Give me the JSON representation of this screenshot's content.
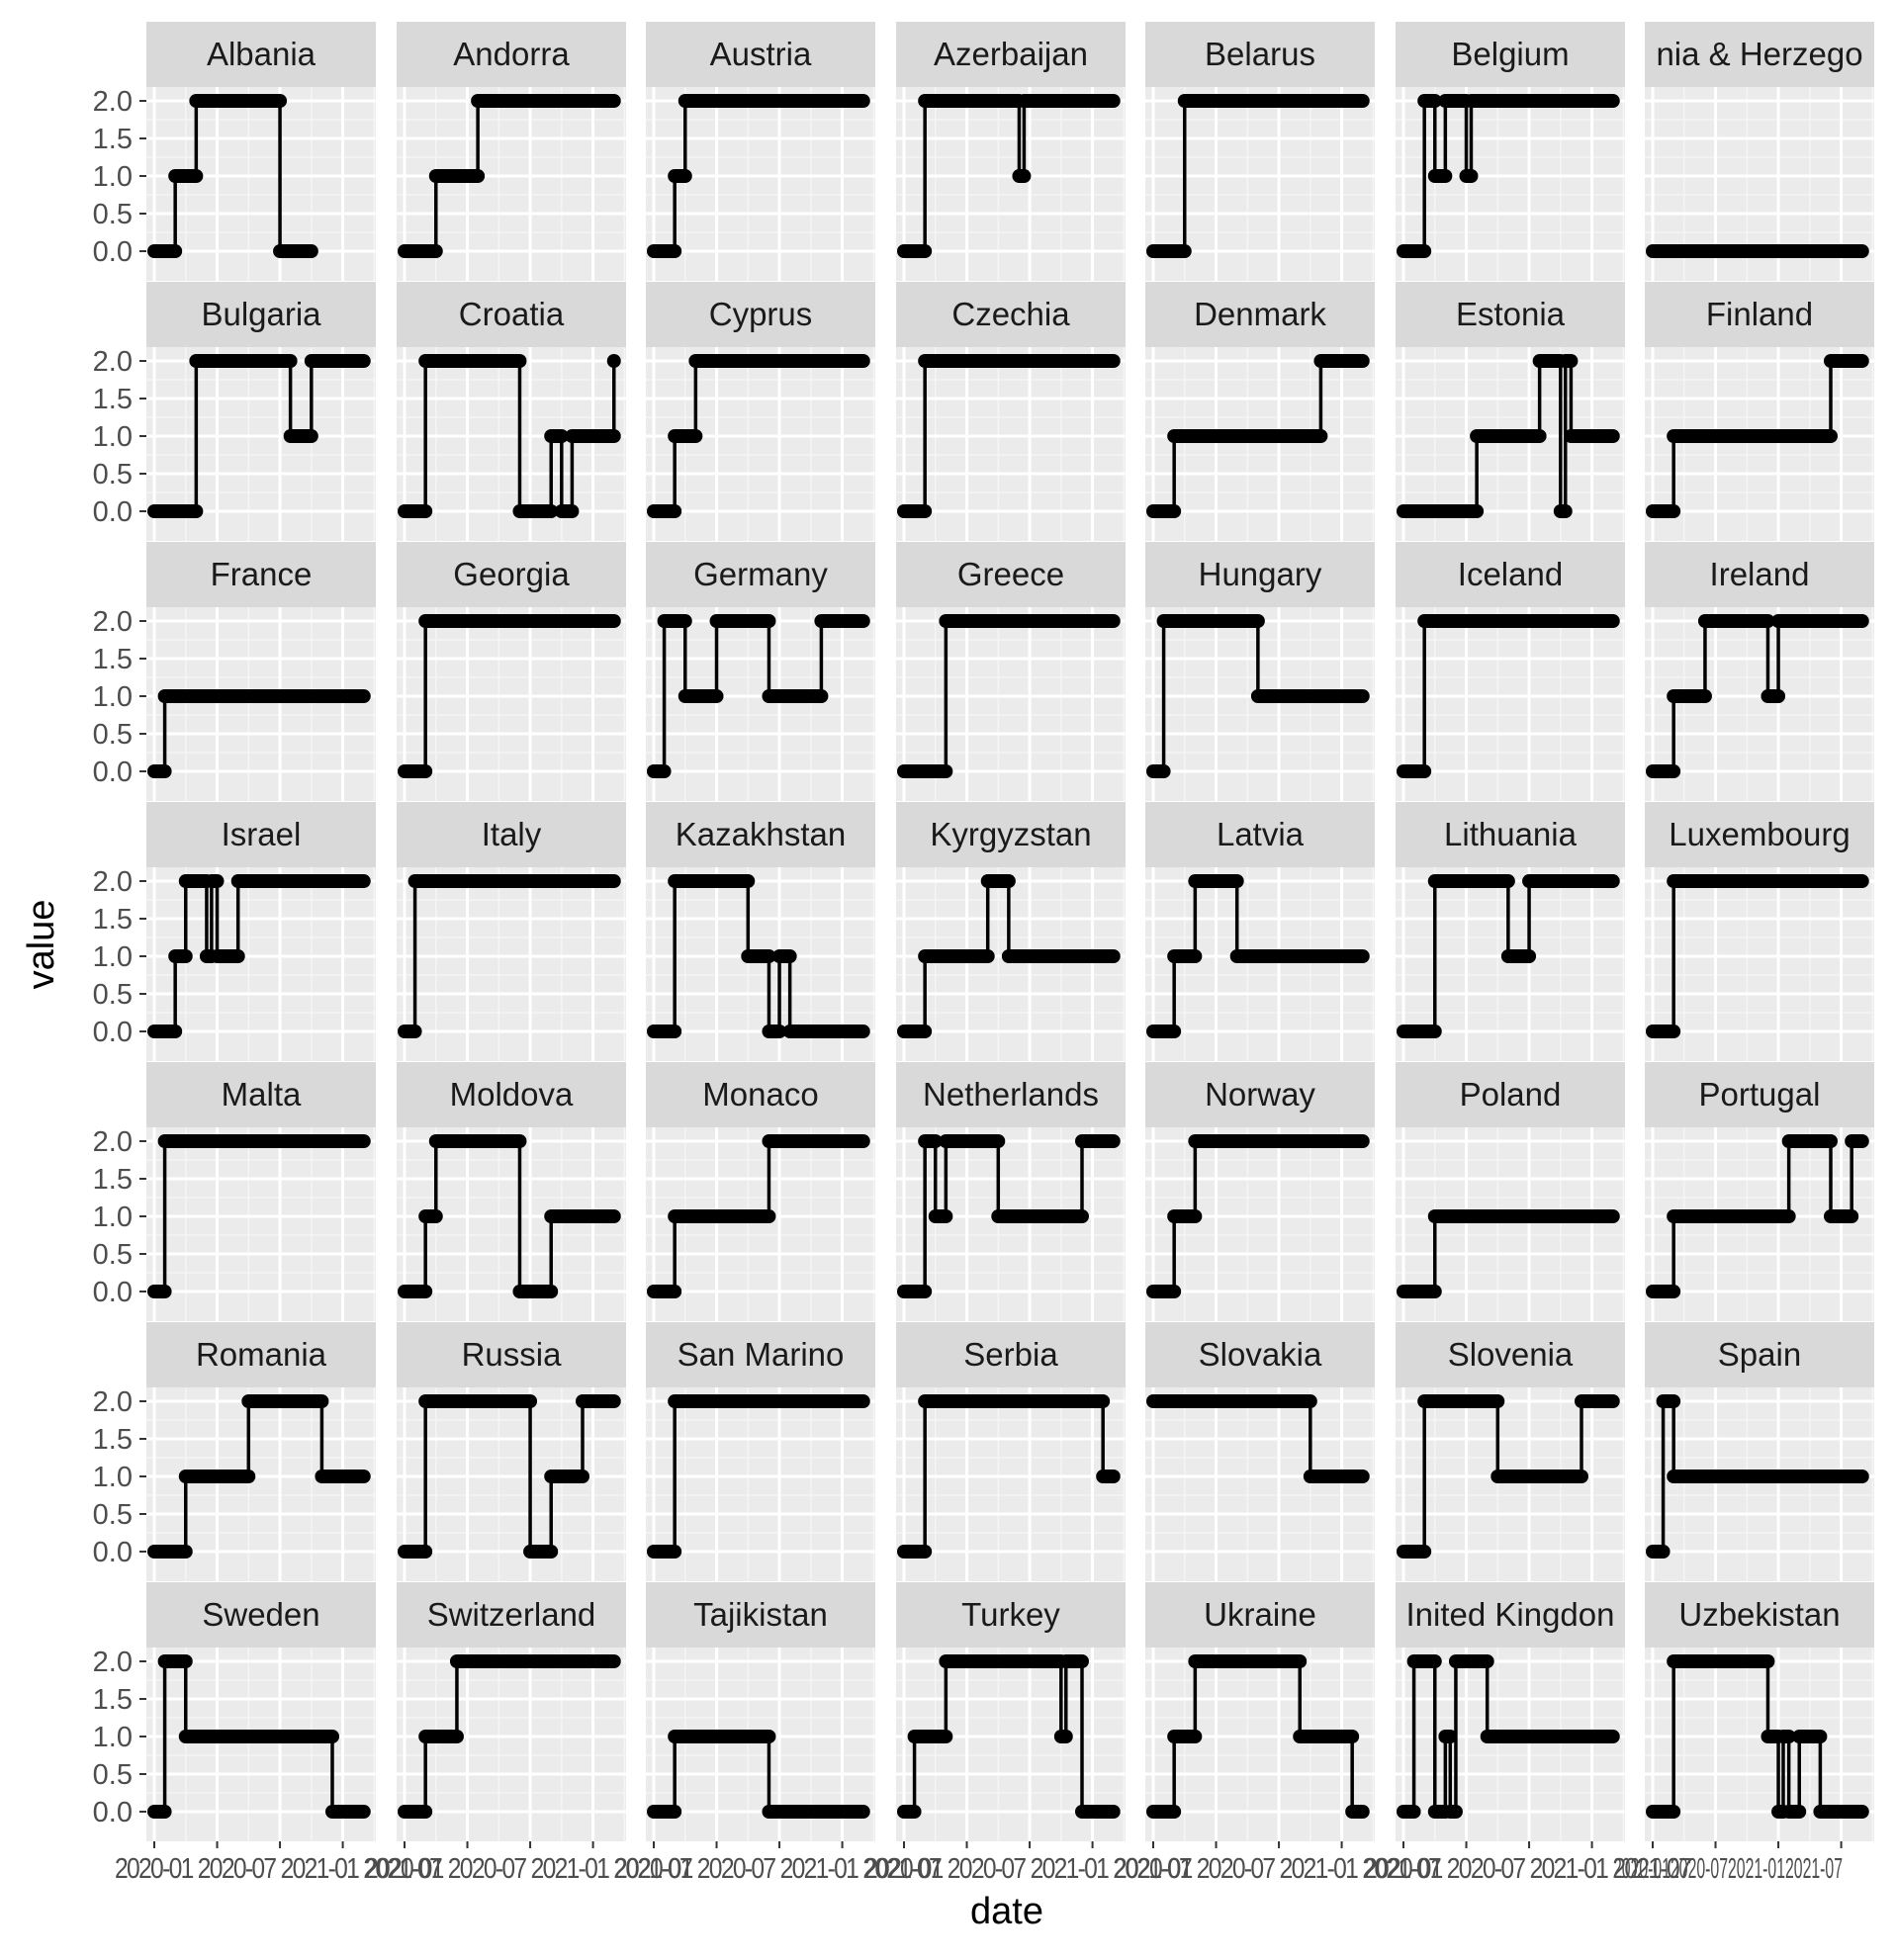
{
  "chart_data": {
    "type": "line",
    "subtype": "step facets",
    "xlabel": "date",
    "ylabel": "value",
    "ylim": [
      0,
      2
    ],
    "y_ticks": [
      "0.0",
      "0.5",
      "1.0",
      "1.5",
      "2.0"
    ],
    "x_range": [
      "2020-01",
      "2021-09"
    ],
    "x_tick_text": "2020-01 2020-07 2021-01 2021-07",
    "x_tick_text_last": "2020-012020-072021-012021-07",
    "x_tick_dates": [
      "2020-01",
      "2020-07",
      "2021-01",
      "2021-07"
    ],
    "ncol": 7,
    "grid": true,
    "facets": [
      {
        "name": "Albania",
        "steps": [
          [
            "2020-01",
            0
          ],
          [
            "2020-03",
            1
          ],
          [
            "2020-05",
            2
          ],
          [
            "2021-01",
            0
          ]
        ],
        "end": "2021-04"
      },
      {
        "name": "Andorra",
        "steps": [
          [
            "2020-01",
            0
          ],
          [
            "2020-04",
            1
          ],
          [
            "2020-08",
            2
          ]
        ],
        "end": "2021-09"
      },
      {
        "name": "Austria",
        "steps": [
          [
            "2020-01",
            0
          ],
          [
            "2020-03",
            1
          ],
          [
            "2020-04",
            2
          ]
        ],
        "end": "2021-09"
      },
      {
        "name": "Azerbaijan",
        "steps": [
          [
            "2020-01",
            0
          ],
          [
            "2020-03",
            2
          ],
          [
            "2020-12",
            1
          ],
          [
            "2020-12-15",
            2
          ]
        ],
        "end": "2021-09"
      },
      {
        "name": "Belarus",
        "steps": [
          [
            "2020-01",
            0
          ],
          [
            "2020-04",
            2
          ]
        ],
        "end": "2021-09"
      },
      {
        "name": "Belgium",
        "steps": [
          [
            "2020-01",
            0
          ],
          [
            "2020-03",
            2
          ],
          [
            "2020-04",
            1
          ],
          [
            "2020-05",
            2
          ],
          [
            "2020-07",
            1
          ],
          [
            "2020-07-15",
            2
          ]
        ],
        "end": "2021-09"
      },
      {
        "name": "Bosnia & Herzegovina",
        "label": "nia & Herzego",
        "steps": [
          [
            "2020-01",
            0
          ]
        ],
        "end": "2021-09"
      },
      {
        "name": "Bulgaria",
        "steps": [
          [
            "2020-01",
            0
          ],
          [
            "2020-05",
            2
          ],
          [
            "2021-02",
            1
          ],
          [
            "2021-04",
            2
          ]
        ],
        "end": "2021-09"
      },
      {
        "name": "Croatia",
        "steps": [
          [
            "2020-01",
            0
          ],
          [
            "2020-03",
            2
          ],
          [
            "2020-12",
            0
          ],
          [
            "2021-03",
            1
          ],
          [
            "2021-04",
            0
          ],
          [
            "2021-05",
            1
          ],
          [
            "2021-09",
            2
          ]
        ],
        "end": "2021-09"
      },
      {
        "name": "Cyprus",
        "steps": [
          [
            "2020-01",
            0
          ],
          [
            "2020-03",
            1
          ],
          [
            "2020-05",
            2
          ]
        ],
        "end": "2021-09"
      },
      {
        "name": "Czechia",
        "steps": [
          [
            "2020-01",
            0
          ],
          [
            "2020-03",
            2
          ]
        ],
        "end": "2021-09"
      },
      {
        "name": "Denmark",
        "steps": [
          [
            "2020-01",
            0
          ],
          [
            "2020-03",
            1
          ],
          [
            "2021-05",
            2
          ]
        ],
        "end": "2021-09"
      },
      {
        "name": "Estonia",
        "steps": [
          [
            "2020-01",
            0
          ],
          [
            "2020-08",
            1
          ],
          [
            "2021-02",
            2
          ],
          [
            "2021-04",
            0
          ],
          [
            "2021-04-15",
            2
          ],
          [
            "2021-05",
            1
          ]
        ],
        "end": "2021-09"
      },
      {
        "name": "Finland",
        "steps": [
          [
            "2020-01",
            0
          ],
          [
            "2020-03",
            1
          ],
          [
            "2021-06",
            2
          ]
        ],
        "end": "2021-09"
      },
      {
        "name": "France",
        "steps": [
          [
            "2020-01",
            0
          ],
          [
            "2020-02",
            1
          ]
        ],
        "end": "2021-09"
      },
      {
        "name": "Georgia",
        "steps": [
          [
            "2020-01",
            0
          ],
          [
            "2020-03",
            2
          ]
        ],
        "end": "2021-09"
      },
      {
        "name": "Germany",
        "steps": [
          [
            "2020-01",
            0
          ],
          [
            "2020-02",
            2
          ],
          [
            "2020-04",
            1
          ],
          [
            "2020-07",
            2
          ],
          [
            "2020-12",
            1
          ],
          [
            "2021-05",
            2
          ]
        ],
        "end": "2021-09"
      },
      {
        "name": "Greece",
        "steps": [
          [
            "2020-01",
            0
          ],
          [
            "2020-05",
            2
          ]
        ],
        "end": "2021-09"
      },
      {
        "name": "Hungary",
        "steps": [
          [
            "2020-01",
            0
          ],
          [
            "2020-02",
            2
          ],
          [
            "2020-11",
            1
          ]
        ],
        "end": "2021-09"
      },
      {
        "name": "Iceland",
        "steps": [
          [
            "2020-01",
            0
          ],
          [
            "2020-03",
            2
          ]
        ],
        "end": "2021-09"
      },
      {
        "name": "Ireland",
        "steps": [
          [
            "2020-01",
            0
          ],
          [
            "2020-03",
            1
          ],
          [
            "2020-06",
            2
          ],
          [
            "2020-12",
            1
          ],
          [
            "2021-01",
            2
          ]
        ],
        "end": "2021-09"
      },
      {
        "name": "Israel",
        "steps": [
          [
            "2020-01",
            0
          ],
          [
            "2020-03",
            1
          ],
          [
            "2020-04",
            2
          ],
          [
            "2020-06",
            1
          ],
          [
            "2020-06-15",
            2
          ],
          [
            "2020-07",
            1
          ],
          [
            "2020-09",
            2
          ]
        ],
        "end": "2021-09"
      },
      {
        "name": "Italy",
        "steps": [
          [
            "2020-01",
            0
          ],
          [
            "2020-02",
            2
          ]
        ],
        "end": "2021-09"
      },
      {
        "name": "Kazakhstan",
        "steps": [
          [
            "2020-01",
            0
          ],
          [
            "2020-03",
            2
          ],
          [
            "2020-10",
            1
          ],
          [
            "2020-12",
            0
          ],
          [
            "2021-01",
            1
          ],
          [
            "2021-02",
            0
          ]
        ],
        "end": "2021-09"
      },
      {
        "name": "Kyrgyzstan",
        "steps": [
          [
            "2020-01",
            0
          ],
          [
            "2020-03",
            1
          ],
          [
            "2020-09",
            2
          ],
          [
            "2020-11",
            1
          ]
        ],
        "end": "2021-09"
      },
      {
        "name": "Latvia",
        "steps": [
          [
            "2020-01",
            0
          ],
          [
            "2020-03",
            1
          ],
          [
            "2020-05",
            2
          ],
          [
            "2020-09",
            1
          ]
        ],
        "end": "2021-09"
      },
      {
        "name": "Lithuania",
        "steps": [
          [
            "2020-01",
            0
          ],
          [
            "2020-04",
            2
          ],
          [
            "2020-11",
            1
          ],
          [
            "2021-01",
            2
          ]
        ],
        "end": "2021-09"
      },
      {
        "name": "Luxembourg",
        "steps": [
          [
            "2020-01",
            0
          ],
          [
            "2020-03",
            2
          ]
        ],
        "end": "2021-09"
      },
      {
        "name": "Malta",
        "steps": [
          [
            "2020-01",
            0
          ],
          [
            "2020-02",
            2
          ]
        ],
        "end": "2021-09"
      },
      {
        "name": "Moldova",
        "steps": [
          [
            "2020-01",
            0
          ],
          [
            "2020-03",
            1
          ],
          [
            "2020-04",
            2
          ],
          [
            "2020-12",
            0
          ],
          [
            "2021-03",
            1
          ]
        ],
        "end": "2021-09"
      },
      {
        "name": "Monaco",
        "steps": [
          [
            "2020-01",
            0
          ],
          [
            "2020-03",
            1
          ],
          [
            "2020-09",
            1
          ],
          [
            "2020-12",
            2
          ]
        ],
        "end": "2021-09"
      },
      {
        "name": "Netherlands",
        "steps": [
          [
            "2020-01",
            0
          ],
          [
            "2020-03",
            2
          ],
          [
            "2020-04",
            1
          ],
          [
            "2020-05",
            2
          ],
          [
            "2020-10",
            1
          ],
          [
            "2021-06",
            2
          ]
        ],
        "end": "2021-09"
      },
      {
        "name": "Norway",
        "steps": [
          [
            "2020-01",
            0
          ],
          [
            "2020-03",
            1
          ],
          [
            "2020-05",
            2
          ]
        ],
        "end": "2021-09"
      },
      {
        "name": "Poland",
        "steps": [
          [
            "2020-01",
            0
          ],
          [
            "2020-04",
            1
          ]
        ],
        "end": "2021-09"
      },
      {
        "name": "Portugal",
        "steps": [
          [
            "2020-01",
            0
          ],
          [
            "2020-03",
            1
          ],
          [
            "2021-02",
            2
          ],
          [
            "2021-06",
            1
          ],
          [
            "2021-08",
            2
          ]
        ],
        "end": "2021-09"
      },
      {
        "name": "Romania",
        "steps": [
          [
            "2020-01",
            0
          ],
          [
            "2020-04",
            1
          ],
          [
            "2020-10",
            2
          ],
          [
            "2021-05",
            1
          ]
        ],
        "end": "2021-09"
      },
      {
        "name": "Russia",
        "steps": [
          [
            "2020-01",
            0
          ],
          [
            "2020-03",
            2
          ],
          [
            "2021-01",
            0
          ],
          [
            "2021-03",
            1
          ],
          [
            "2021-06",
            2
          ]
        ],
        "end": "2021-09"
      },
      {
        "name": "San Marino",
        "steps": [
          [
            "2020-01",
            0
          ],
          [
            "2020-03",
            2
          ]
        ],
        "end": "2021-09"
      },
      {
        "name": "Serbia",
        "steps": [
          [
            "2020-01",
            0
          ],
          [
            "2020-03",
            2
          ],
          [
            "2021-08",
            1
          ]
        ],
        "end": "2021-09"
      },
      {
        "name": "Slovakia",
        "steps": [
          [
            "2020-01",
            2
          ],
          [
            "2021-04",
            1
          ]
        ],
        "end": "2021-09"
      },
      {
        "name": "Slovenia",
        "steps": [
          [
            "2020-01",
            0
          ],
          [
            "2020-03",
            2
          ],
          [
            "2020-10",
            1
          ],
          [
            "2021-06",
            2
          ]
        ],
        "end": "2021-09"
      },
      {
        "name": "Spain",
        "steps": [
          [
            "2020-01",
            0
          ],
          [
            "2020-02",
            2
          ],
          [
            "2020-03",
            1
          ]
        ],
        "end": "2021-09"
      },
      {
        "name": "Sweden",
        "steps": [
          [
            "2020-01",
            0
          ],
          [
            "2020-02",
            2
          ],
          [
            "2020-04",
            1
          ],
          [
            "2021-06",
            0
          ]
        ],
        "end": "2021-09"
      },
      {
        "name": "Switzerland",
        "steps": [
          [
            "2020-01",
            0
          ],
          [
            "2020-03",
            1
          ],
          [
            "2020-06",
            2
          ]
        ],
        "end": "2021-09"
      },
      {
        "name": "Tajikistan",
        "steps": [
          [
            "2020-01",
            0
          ],
          [
            "2020-03",
            1
          ],
          [
            "2020-12",
            0
          ]
        ],
        "end": "2021-09"
      },
      {
        "name": "Turkey",
        "steps": [
          [
            "2020-01",
            0
          ],
          [
            "2020-02",
            1
          ],
          [
            "2020-05",
            2
          ],
          [
            "2021-04",
            1
          ],
          [
            "2021-04-15",
            2
          ],
          [
            "2021-06",
            0
          ]
        ],
        "end": "2021-09"
      },
      {
        "name": "Ukraine",
        "steps": [
          [
            "2020-01",
            0
          ],
          [
            "2020-03",
            1
          ],
          [
            "2020-05",
            2
          ],
          [
            "2021-03",
            1
          ],
          [
            "2021-08",
            0
          ]
        ],
        "end": "2021-09"
      },
      {
        "name": "United Kingdom",
        "label": "Inited Kingdon",
        "steps": [
          [
            "2020-01",
            0
          ],
          [
            "2020-02",
            2
          ],
          [
            "2020-04",
            0
          ],
          [
            "2020-05",
            1
          ],
          [
            "2020-05-15",
            0
          ],
          [
            "2020-06",
            2
          ],
          [
            "2020-09",
            1
          ]
        ],
        "end": "2021-09"
      },
      {
        "name": "Uzbekistan",
        "steps": [
          [
            "2020-01",
            0
          ],
          [
            "2020-03",
            2
          ],
          [
            "2020-12",
            1
          ],
          [
            "2021-01",
            0
          ],
          [
            "2021-01-15",
            1
          ],
          [
            "2021-02",
            0
          ],
          [
            "2021-03",
            1
          ],
          [
            "2021-05",
            0
          ]
        ],
        "end": "2021-09"
      }
    ]
  }
}
